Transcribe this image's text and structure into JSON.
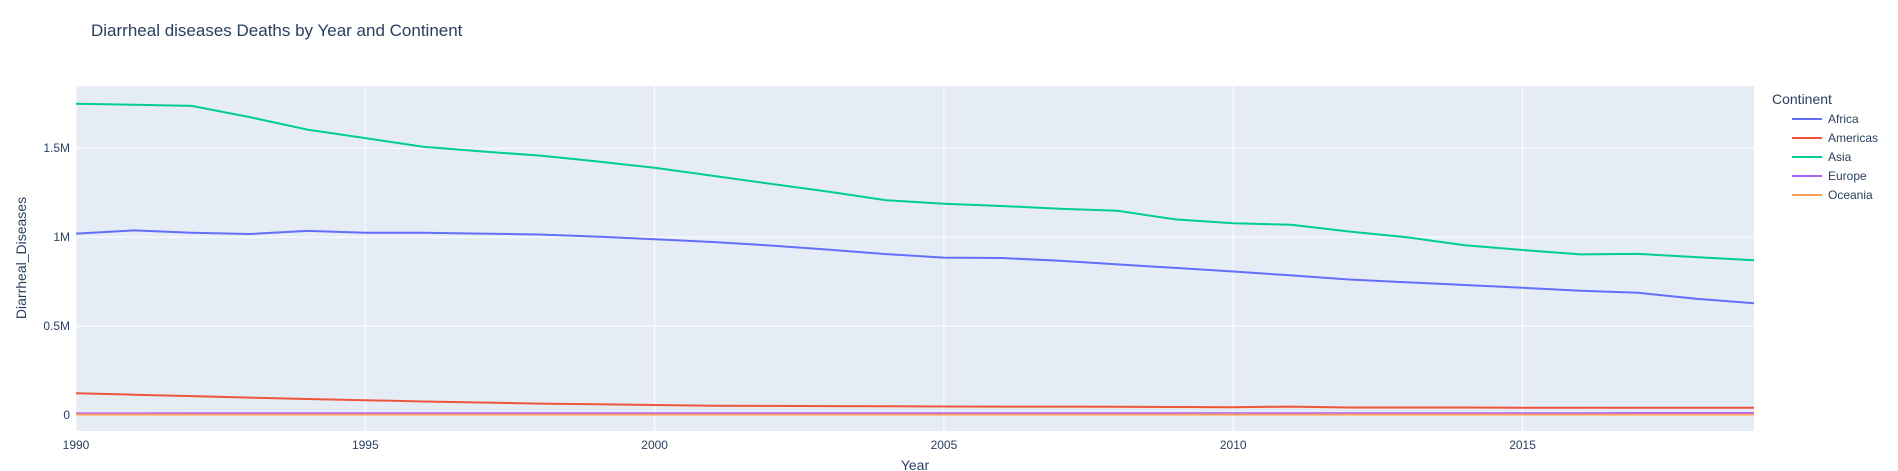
{
  "chart_data": {
    "type": "line",
    "title": "Diarrheal diseases Deaths by Year and Continent",
    "xlabel": "Year",
    "ylabel": "Diarrheal_Diseases",
    "xlim": [
      1990,
      2019
    ],
    "ylim": [
      -90000,
      1850000
    ],
    "x_ticks": [
      1990,
      1995,
      2000,
      2005,
      2010,
      2015
    ],
    "x_tick_labels": [
      "1990",
      "1995",
      "2000",
      "2005",
      "2010",
      "2015"
    ],
    "y_ticks": [
      0,
      500000,
      1000000,
      1500000
    ],
    "y_tick_labels": [
      "0",
      "0.5M",
      "1M",
      "1.5M"
    ],
    "grid": true,
    "plot_background": "#e5ecf6",
    "legend_title": "Continent",
    "legend_position": "right",
    "x": [
      1990,
      1991,
      1992,
      1993,
      1994,
      1995,
      1996,
      1997,
      1998,
      1999,
      2000,
      2001,
      2002,
      2003,
      2004,
      2005,
      2006,
      2007,
      2008,
      2009,
      2010,
      2011,
      2012,
      2013,
      2014,
      2015,
      2016,
      2017,
      2018,
      2019
    ],
    "series": [
      {
        "name": "Africa",
        "color": "#636efa",
        "values": [
          1020000,
          1038000,
          1025000,
          1018000,
          1035000,
          1025000,
          1025000,
          1020000,
          1015000,
          1003000,
          988000,
          973000,
          953000,
          930000,
          905000,
          885000,
          883000,
          867000,
          847000,
          827000,
          807000,
          785000,
          762000,
          746000,
          731000,
          715000,
          699000,
          687000,
          654000,
          628000
        ]
      },
      {
        "name": "Americas",
        "color": "#ef553b",
        "values": [
          122000,
          114000,
          106000,
          98000,
          90000,
          83000,
          76000,
          70000,
          64000,
          60000,
          56000,
          52000,
          51000,
          50000,
          49000,
          48000,
          47000,
          47000,
          46000,
          45000,
          44000,
          47000,
          42000,
          42000,
          42000,
          41000,
          41000,
          41000,
          41000,
          41000
        ]
      },
      {
        "name": "Asia",
        "color": "#00cc96",
        "values": [
          1750000,
          1745000,
          1738000,
          1675000,
          1605000,
          1557000,
          1508000,
          1482000,
          1459000,
          1426000,
          1390000,
          1345000,
          1300000,
          1256000,
          1208000,
          1188000,
          1175000,
          1160000,
          1148000,
          1100000,
          1078000,
          1070000,
          1032000,
          1000000,
          955000,
          928000,
          903000,
          906000,
          888000,
          870000
        ]
      },
      {
        "name": "Europe",
        "color": "#ab63fa",
        "values": [
          9000,
          9000,
          10000,
          10000,
          10000,
          10000,
          10000,
          10000,
          10000,
          10000,
          10000,
          10000,
          10000,
          10000,
          10000,
          10000,
          10000,
          10000,
          10000,
          10000,
          10000,
          10000,
          10000,
          10000,
          10000,
          10000,
          10000,
          11000,
          11000,
          11000
        ]
      },
      {
        "name": "Oceania",
        "color": "#ffa15a",
        "values": [
          2000,
          2000,
          2000,
          2000,
          2000,
          2000,
          2000,
          2000,
          2000,
          2000,
          2000,
          2000,
          2000,
          2000,
          2000,
          2000,
          2000,
          2000,
          2000,
          2000,
          2000,
          2000,
          2000,
          2000,
          2000,
          2000,
          2000,
          2000,
          2000,
          2000
        ]
      }
    ]
  }
}
